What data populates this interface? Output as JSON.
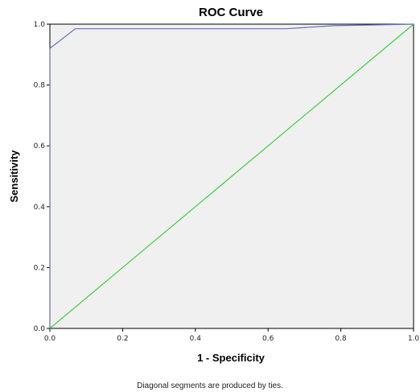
{
  "chart_data": {
    "type": "line",
    "title": "ROC Curve",
    "xlabel": "1 - Specificity",
    "ylabel": "Sensitivity",
    "footnote": "Diagonal segments are produced by ties.",
    "xlim": [
      0,
      1
    ],
    "ylim": [
      0,
      1
    ],
    "xticks": [
      "0.0",
      "0.2",
      "0.4",
      "0.6",
      "0.8",
      "1.0"
    ],
    "yticks": [
      "0.0",
      "0.2",
      "0.4",
      "0.6",
      "0.8",
      "1.0"
    ],
    "grid": false,
    "legend": "none",
    "plot_background": "#f0f0f0",
    "series": [
      {
        "color": "#5b6fbf",
        "x": [
          0.0,
          0.0,
          0.07,
          0.65,
          0.78,
          1.0
        ],
        "y": [
          0.0,
          0.92,
          0.985,
          0.985,
          0.995,
          1.0
        ]
      },
      {
        "color": "#3ecf3e",
        "x": [
          0.0,
          1.0
        ],
        "y": [
          0.0,
          1.0
        ]
      }
    ]
  }
}
